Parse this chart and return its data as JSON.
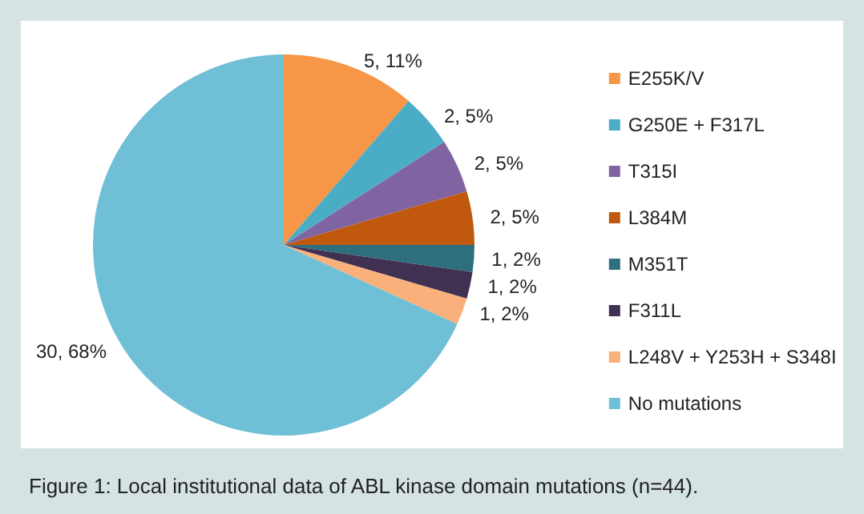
{
  "chart_data": {
    "type": "pie",
    "title": "Figure 1: Local institutional data of ABL kinase domain mutations (n=44).",
    "categories": [
      "E255K/V",
      "G250E + F317L",
      "T315I",
      "L384M",
      "M351T",
      "F311L",
      "L248V + Y253H + S348I",
      "No mutations"
    ],
    "values": [
      5,
      2,
      2,
      2,
      1,
      1,
      1,
      30
    ],
    "value_labels": [
      "5, 11%",
      "2, 5%",
      "2, 5%",
      "2, 5%",
      "1, 2%",
      "1, 2%",
      "1, 2%",
      "30, 68%"
    ],
    "colors": [
      "#f79646",
      "#4bacc6",
      "#8064a2",
      "#c0590e",
      "#2e6f7e",
      "#403152",
      "#fab07a",
      "#6fbfd6"
    ],
    "legend": "right"
  }
}
